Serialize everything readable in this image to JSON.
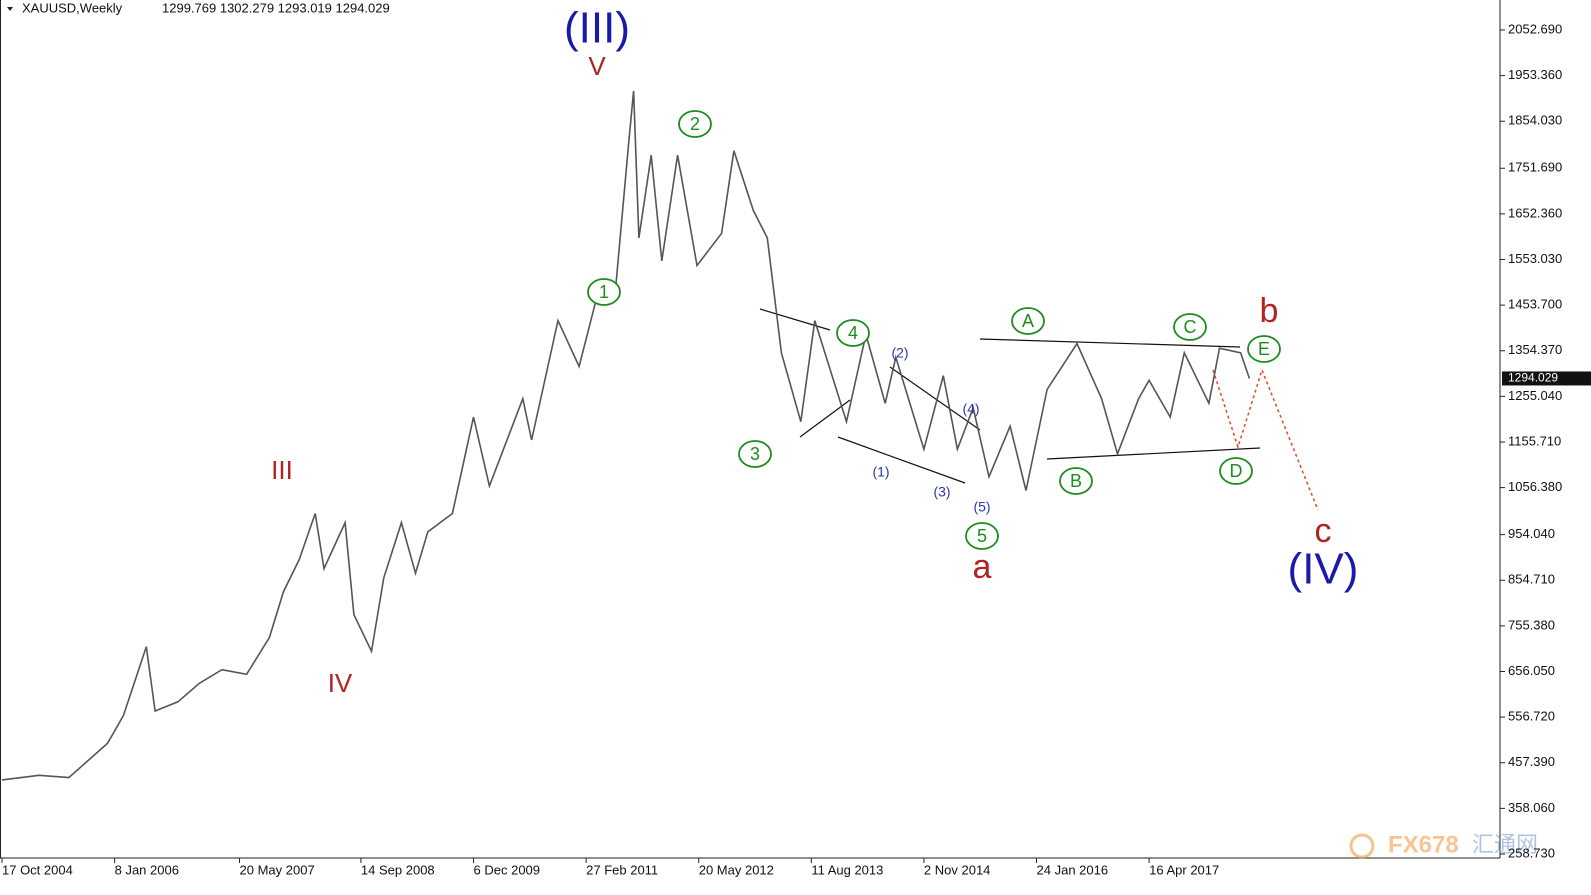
{
  "chart_data": {
    "type": "line",
    "title": "XAUUSD,Weekly",
    "subtitle": "1299.769 1302.279 1293.019 1294.029",
    "last_price": 1294.029,
    "xlim": [
      "9 Oct 2004",
      "10 Feb 2021"
    ],
    "xticks": [
      "17 Oct 2004",
      "8 Jan 2006",
      "20 May 2007",
      "14 Sep 2008",
      "6 Dec 2009",
      "27 Feb 2011",
      "20 May 2012",
      "11 Aug 2013",
      "2 Nov 2014",
      "24 Jan 2016",
      "16 Apr 2017"
    ],
    "ylim": [
      250,
      2118
    ],
    "yticks": [
      {
        "value": 2052.69,
        "label": "2052.690"
      },
      {
        "value": 1953.36,
        "label": "1953.360"
      },
      {
        "value": 1854.03,
        "label": "1854.030"
      },
      {
        "value": 1751.69,
        "label": "1751.690"
      },
      {
        "value": 1652.36,
        "label": "1652.360"
      },
      {
        "value": 1553.03,
        "label": "1553.030"
      },
      {
        "value": 1453.7,
        "label": "1453.700"
      },
      {
        "value": 1354.37,
        "label": "1354.370"
      },
      {
        "value": 1255.04,
        "label": "1255.040"
      },
      {
        "value": 1155.71,
        "label": "1155.710"
      },
      {
        "value": 1056.38,
        "label": "1056.380"
      },
      {
        "value": 954.04,
        "label": "954.040"
      },
      {
        "value": 854.71,
        "label": "854.710"
      },
      {
        "value": 755.38,
        "label": "755.380"
      },
      {
        "value": 656.05,
        "label": "656.050"
      },
      {
        "value": 556.72,
        "label": "556.720"
      },
      {
        "value": 457.39,
        "label": "457.390"
      },
      {
        "value": 358.06,
        "label": "358.060"
      },
      {
        "value": 258.73,
        "label": "258.730"
      }
    ],
    "series": [
      {
        "name": "XAUUSD",
        "color": "#555555",
        "x": [
          "17 Oct 2004",
          "13 Mar 2005",
          "10 Jul 2005",
          "11 Dec 2005",
          "12 Feb 2006",
          "14 May 2006",
          "18 Jun 2006",
          "17 Sep 2006",
          "10 Dec 2006",
          "11 Mar 2007",
          "17 Jun 2007",
          "16 Sep 2007",
          "11 Nov 2007",
          "13 Jan 2008",
          "16 Mar 2008",
          "20 Apr 2008",
          "13 Jul 2008",
          "17 Aug 2008",
          "26 Oct 2008",
          "14 Dec 2008",
          "22 Feb 2009",
          "19 Apr 2009",
          "7 Jun 2009",
          "13 Sep 2009",
          "6 Dec 2009",
          "7 Feb 2010",
          "20 Jun 2010",
          "25 Jul 2010",
          "7 Nov 2010",
          "30 Jan 2011",
          "24 Apr 2011",
          "26 Jun 2011",
          "14 Aug 2011",
          "4 Sep 2011",
          "25 Sep 2011",
          "13 Nov 2011",
          "25 Dec 2011",
          "26 Feb 2012",
          "13 May 2012",
          "19 Aug 2012",
          "7 Oct 2012",
          "23 Dec 2012",
          "17 Feb 2013",
          "14 Apr 2013",
          "30 Jun 2013",
          "25 Aug 2013",
          "29 Dec 2013",
          "16 Mar 2014",
          "1 Jun 2014",
          "13 Jul 2014",
          "2 Nov 2014",
          "18 Jan 2015",
          "15 Mar 2015",
          "17 May 2015",
          "19 Jul 2015",
          "11 Oct 2015",
          "13 Dec 2015",
          "6 Mar 2016",
          "3 Jul 2016",
          "9 Oct 2016",
          "11 Dec 2016",
          "5 Mar 2017",
          "16 Apr 2017",
          "9 Jul 2017",
          "3 Sep 2017",
          "10 Dec 2017",
          "21 Jan 2018",
          "15 Apr 2018",
          "20 May 2018"
        ],
        "values": [
          420,
          430,
          425,
          500,
          560,
          710,
          570,
          590,
          630,
          660,
          650,
          730,
          830,
          900,
          1000,
          880,
          980,
          780,
          700,
          860,
          980,
          870,
          960,
          1000,
          1210,
          1060,
          1250,
          1160,
          1420,
          1320,
          1500,
          1500,
          1800,
          1920,
          1600,
          1780,
          1550,
          1780,
          1540,
          1610,
          1790,
          1660,
          1600,
          1350,
          1200,
          1420,
          1200,
          1390,
          1240,
          1340,
          1140,
          1300,
          1140,
          1230,
          1080,
          1190,
          1050,
          1270,
          1370,
          1250,
          1130,
          1250,
          1290,
          1210,
          1350,
          1240,
          1360,
          1350,
          1294
        ]
      }
    ],
    "wave_degree_major": {
      "color": "#1a1aa8",
      "labels": [
        "(III)",
        "(IV)"
      ]
    },
    "wave_degree_intermediate": {
      "color": "#b22222",
      "labels": [
        "V",
        "III",
        "IV",
        "a",
        "b",
        "c"
      ]
    },
    "wave_degree_minor": {
      "color": "#1e8c1e",
      "labels": [
        "1",
        "2",
        "3",
        "4",
        "5",
        "A",
        "B",
        "C",
        "D",
        "E"
      ]
    },
    "wave_degree_minute": {
      "color": "#2838b0",
      "labels": [
        "(1)",
        "(2)",
        "(3)",
        "(4)",
        "(5)"
      ]
    },
    "watermark": [
      "FX678",
      "汇通网"
    ]
  }
}
